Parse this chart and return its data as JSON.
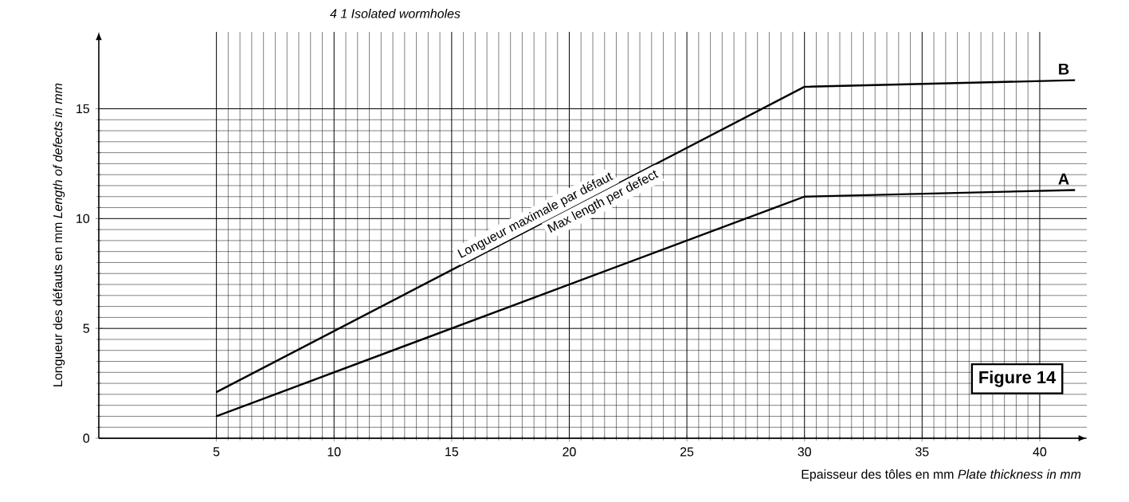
{
  "chart_data": {
    "type": "line",
    "title": "4 1 Isolated wormholes",
    "xlabel": "Epaisseur des tôles en mm   *Plate thickness in mm*",
    "ylabel": "Longueur des défauts en mm   *Length of defects in mm*",
    "x": [
      5,
      30,
      41.5
    ],
    "series": [
      {
        "name": "B",
        "color": "#000000",
        "values": [
          2.1,
          16,
          16.3
        ]
      },
      {
        "name": "A",
        "color": "#000000",
        "values": [
          1,
          11,
          11.3
        ]
      }
    ],
    "annotations": [
      "Longueur maximale par défaut",
      "Max length per defect",
      "Figure 14"
    ],
    "xlim": [
      0,
      42
    ],
    "ylim": [
      0,
      18.5
    ],
    "xticks": [
      5,
      10,
      15,
      20,
      25,
      30,
      35,
      40
    ],
    "yticks": [
      0,
      5,
      10,
      15
    ],
    "grid": true,
    "marker": "none",
    "line_style": "solid"
  }
}
